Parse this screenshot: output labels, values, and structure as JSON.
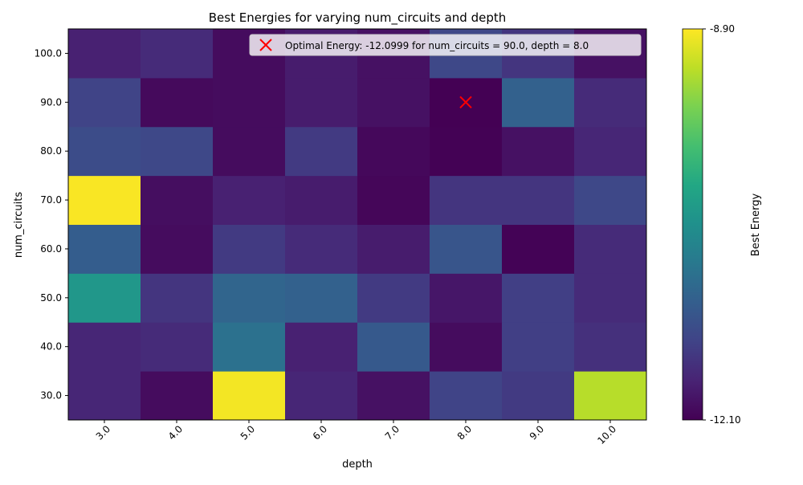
{
  "chart_data": {
    "type": "heatmap",
    "title": "Best Energies for varying num_circuits and depth",
    "xlabel": "depth",
    "ylabel": "num_circuits",
    "x": [
      "3.0",
      "4.0",
      "5.0",
      "6.0",
      "7.0",
      "8.0",
      "9.0",
      "10.0"
    ],
    "y": [
      "30.0",
      "40.0",
      "50.0",
      "60.0",
      "70.0",
      "80.0",
      "90.0",
      "100.0"
    ],
    "values": [
      [
        -11.75,
        -12.0,
        -8.95,
        -11.75,
        -11.95,
        -11.45,
        -11.55,
        -9.25
      ],
      [
        -11.75,
        -11.7,
        -10.9,
        -11.8,
        -11.2,
        -12.0,
        -11.5,
        -11.65
      ],
      [
        -10.4,
        -11.6,
        -11.05,
        -11.1,
        -11.55,
        -11.9,
        -11.5,
        -11.7
      ],
      [
        -11.15,
        -12.0,
        -11.55,
        -11.7,
        -11.85,
        -11.25,
        -12.08,
        -11.7
      ],
      [
        -8.92,
        -11.98,
        -11.8,
        -11.85,
        -12.05,
        -11.6,
        -11.6,
        -11.4
      ],
      [
        -11.35,
        -11.4,
        -12.0,
        -11.55,
        -12.03,
        -12.09,
        -11.95,
        -11.75
      ],
      [
        -11.45,
        -12.02,
        -12.0,
        -11.85,
        -11.95,
        -12.1,
        -11.1,
        -11.7
      ],
      [
        -11.8,
        -11.7,
        -12.0,
        -11.85,
        -11.95,
        -11.4,
        -11.6,
        -11.95
      ]
    ],
    "marker": {
      "x": "8.0",
      "y": "90.0",
      "color": "#ff0000",
      "symbol": "x",
      "label": "Optimal Energy: -12.0999 for num_circuits = 90.0, depth = 8.0"
    },
    "colormap": "viridis",
    "vmin": -12.1,
    "vmax": -8.9,
    "colorbar": {
      "label": "Best Energy",
      "tick_labels": [
        "-8.90",
        "-12.10"
      ]
    },
    "legend_position": "upper right",
    "grid": false
  }
}
